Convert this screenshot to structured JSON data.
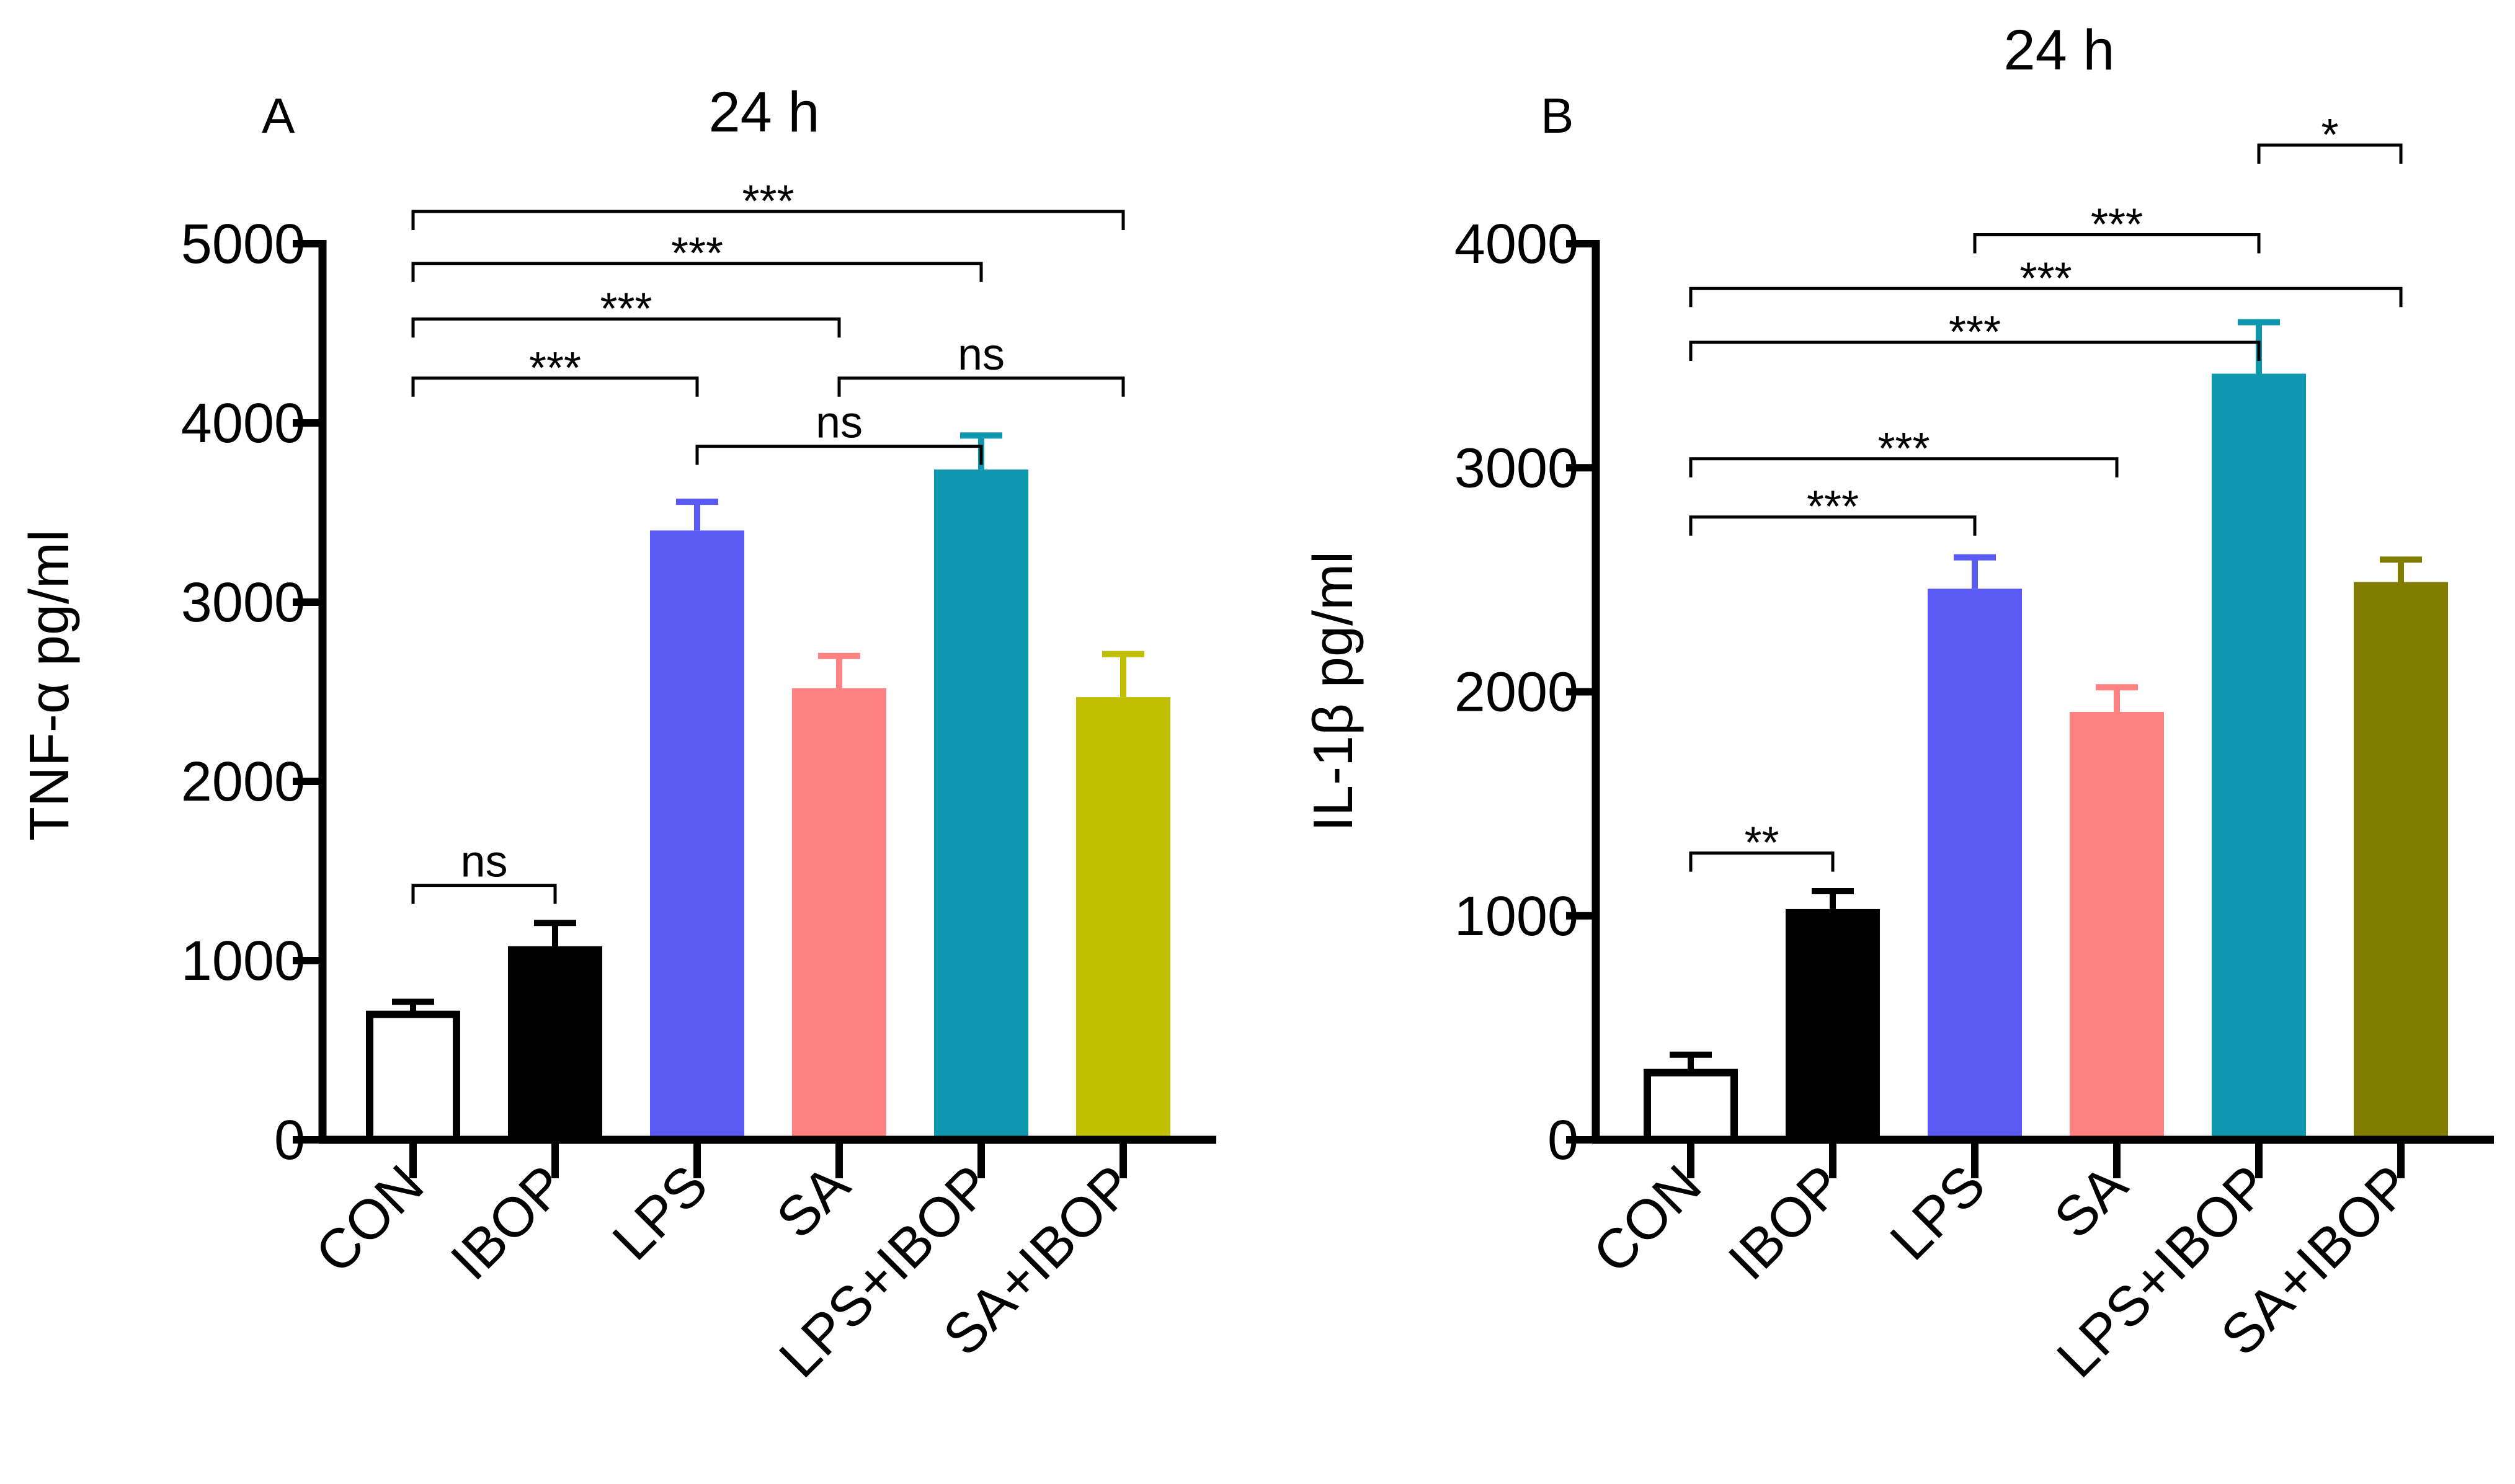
{
  "chart_data": [
    {
      "type": "bar",
      "panel": "A",
      "title": "24 h",
      "xlabel": "",
      "ylabel": "TNF-α pg/ml",
      "ylim": [
        0,
        5000
      ],
      "yticks": [
        "0",
        "1000",
        "2000",
        "3000",
        "4000",
        "5000"
      ],
      "categories": [
        "CON",
        "IBOP",
        "LPS",
        "SA",
        "LPS+IBOP",
        "SA+IBOP"
      ],
      "values": [
        700,
        1080,
        3400,
        2520,
        3740,
        2470
      ],
      "errors": [
        70,
        130,
        160,
        180,
        190,
        240
      ],
      "colors": [
        "#ffffff",
        "#000000",
        "#5a5af5",
        "#ff8282",
        "#1097b0",
        "#c0c000"
      ],
      "comparisons": [
        {
          "from": 0,
          "to": 1,
          "label": "ns",
          "y": 1420
        },
        {
          "from": 2,
          "to": 4,
          "label": "ns",
          "y": 3870
        },
        {
          "from": 0,
          "to": 2,
          "label": "***",
          "y": 4250
        },
        {
          "from": 3,
          "to": 5,
          "label": "ns",
          "y": 4250
        },
        {
          "from": 0,
          "to": 3,
          "label": "***",
          "y": 4580
        },
        {
          "from": 0,
          "to": 4,
          "label": "***",
          "y": 4890
        },
        {
          "from": 0,
          "to": 5,
          "label": "***",
          "y": 5180
        }
      ]
    },
    {
      "type": "bar",
      "panel": "B",
      "title": "24 h",
      "xlabel": "",
      "ylabel": "IL-1β pg/ml",
      "ylim": [
        0,
        4000
      ],
      "yticks": [
        "0",
        "1000",
        "2000",
        "3000",
        "4000"
      ],
      "categories": [
        "CON",
        "IBOP",
        "LPS",
        "SA",
        "LPS+IBOP",
        "SA+IBOP"
      ],
      "values": [
        300,
        1030,
        2460,
        1910,
        3420,
        2490
      ],
      "errors": [
        80,
        80,
        140,
        110,
        230,
        100
      ],
      "colors": [
        "#ffffff",
        "#000000",
        "#5a5af5",
        "#ff8282",
        "#1097b0",
        "#807d00"
      ],
      "comparisons": [
        {
          "from": 0,
          "to": 1,
          "label": "**",
          "y": 1280
        },
        {
          "from": 0,
          "to": 2,
          "label": "***",
          "y": 2780
        },
        {
          "from": 0,
          "to": 3,
          "label": "***",
          "y": 3040
        },
        {
          "from": 0,
          "to": 4,
          "label": "***",
          "y": 3560
        },
        {
          "from": 0,
          "to": 5,
          "label": "***",
          "y": 3800
        },
        {
          "from": 2,
          "to": 4,
          "label": "***",
          "y": 4040
        },
        {
          "from": 4,
          "to": 5,
          "label": "*",
          "y": 4440
        }
      ]
    }
  ]
}
